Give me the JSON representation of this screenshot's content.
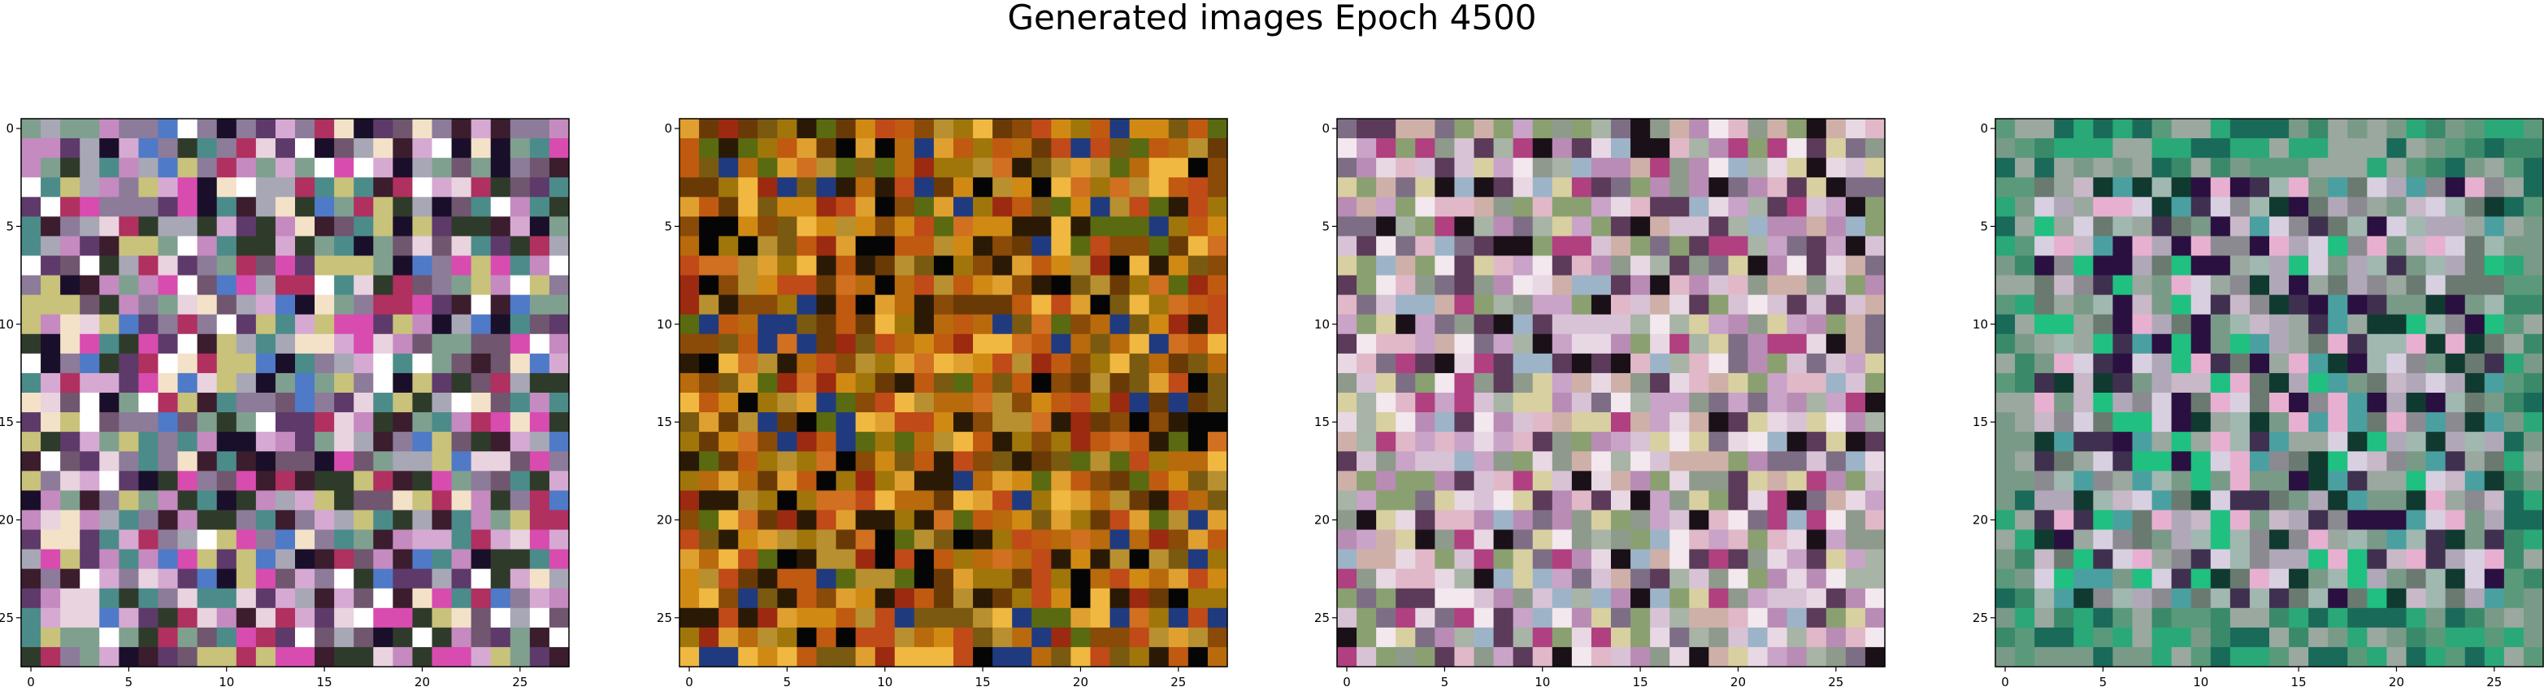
{
  "figure": {
    "title": "Generated images Epoch 4500"
  },
  "chart_data": [
    {
      "type": "heatmap",
      "title": "",
      "image_shape": [
        28,
        28,
        3
      ],
      "palette": [
        "#c58ac0",
        "#a8a7b6",
        "#8d7b9a",
        "#d6a9d3",
        "#7fa08f",
        "#e8d3df",
        "#5d3a6a",
        "#3b1d2e",
        "#d84cb0",
        "#4f7ac8",
        "#f3e2c8",
        "#70566e",
        "#2f3b2a",
        "#b03060",
        "#1a0f2a",
        "#ffffff",
        "#4b8c8a",
        "#c9c27a"
      ],
      "pixel_note": "28x28 generated RGB image, predominantly pink/mauve/grey tones",
      "x_ticks": [
        0,
        5,
        10,
        15,
        20,
        25
      ],
      "y_ticks": [
        0,
        5,
        10,
        15,
        20,
        25
      ],
      "xlim": [
        -0.5,
        27.5
      ],
      "ylim": [
        27.5,
        -0.5
      ]
    },
    {
      "type": "heatmap",
      "title": "",
      "image_shape": [
        28,
        28,
        3
      ],
      "palette": [
        "#b86a0c",
        "#d08a14",
        "#8a4a08",
        "#c05a10",
        "#a0760a",
        "#e0a030",
        "#6a3a06",
        "#9c2a10",
        "#5a6a10",
        "#2a1a05",
        "#d07020",
        "#b89030",
        "#f0b840",
        "#7a5a10",
        "#c04a18",
        "#050505",
        "#203a80"
      ],
      "pixel_note": "28x28 generated RGB image, predominantly orange/amber/brown tones",
      "x_ticks": [
        0,
        5,
        10,
        15,
        20,
        25
      ],
      "y_ticks": [
        0,
        5,
        10,
        15,
        20,
        25
      ],
      "xlim": [
        -0.5,
        27.5
      ],
      "ylim": [
        27.5,
        -0.5
      ]
    },
    {
      "type": "heatmap",
      "title": "",
      "image_shape": [
        28,
        28,
        3
      ],
      "palette": [
        "#c9a3c8",
        "#a7b4a6",
        "#d8c3d6",
        "#8e9a8c",
        "#e8d8e4",
        "#b98cb5",
        "#7d6e86",
        "#f2e8ee",
        "#cfb0a8",
        "#9db4c8",
        "#5b3a5a",
        "#1a1018",
        "#b04080",
        "#d8d0a0",
        "#8aa070",
        "#e0b8c8"
      ],
      "pixel_note": "28x28 generated RGB image, predominantly light pink/grey/pastel tones",
      "x_ticks": [
        0,
        5,
        10,
        15,
        20,
        25
      ],
      "y_ticks": [
        0,
        5,
        10,
        15,
        20,
        25
      ],
      "xlim": [
        -0.5,
        27.5
      ],
      "ylim": [
        27.5,
        -0.5
      ]
    },
    {
      "type": "heatmap",
      "title": "",
      "image_shape": [
        28,
        28,
        3
      ],
      "palette": [
        "#3a8a6a",
        "#2aa878",
        "#5a9a7a",
        "#1a6a5a",
        "#7a9a88",
        "#9aa8a0",
        "#b0a8b8",
        "#c8b8c8",
        "#8a8a90",
        "#4aa0a0",
        "#20c080",
        "#103a30",
        "#2a1040",
        "#d8d0e0",
        "#a0b8b0",
        "#6a7a70",
        "#e8b0d0",
        "#403050"
      ],
      "pixel_note": "28x28 generated RGB image, green/teal border with grey/mauve centre",
      "x_ticks": [
        0,
        5,
        10,
        15,
        20,
        25
      ],
      "y_ticks": [
        0,
        5,
        10,
        15,
        20,
        25
      ],
      "xlim": [
        -0.5,
        27.5
      ],
      "ylim": [
        27.5,
        -0.5
      ]
    }
  ]
}
